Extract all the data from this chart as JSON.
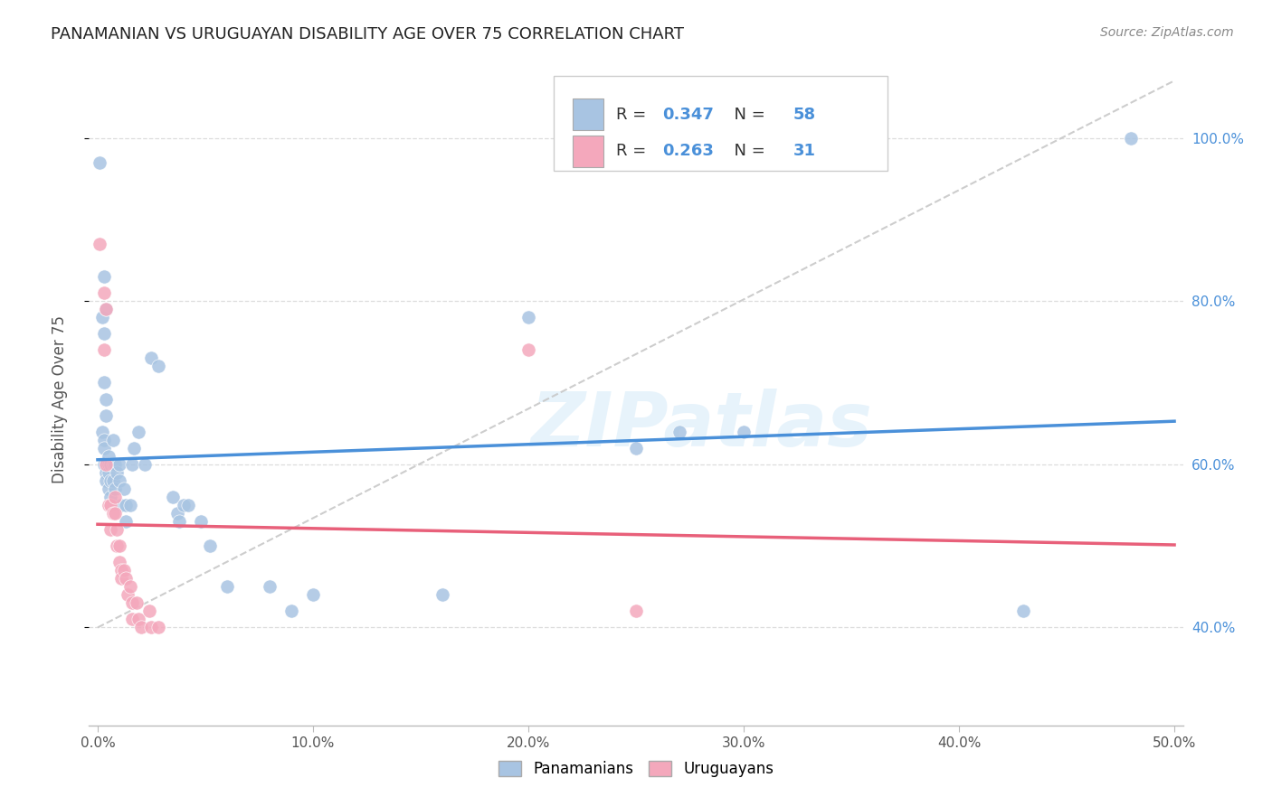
{
  "title": "PANAMANIAN VS URUGUAYAN DISABILITY AGE OVER 75 CORRELATION CHART",
  "source": "Source: ZipAtlas.com",
  "ylabel": "Disability Age Over 75",
  "blue_color": "#a8c4e2",
  "pink_color": "#f4a8bc",
  "blue_line_color": "#4a90d9",
  "pink_line_color": "#e8607a",
  "dashed_line_color": "#c8c8c8",
  "legend_R_blue": "0.347",
  "legend_N_blue": "58",
  "legend_R_pink": "0.263",
  "legend_N_pink": "31",
  "watermark": "ZIPatlas",
  "blue_points": [
    [
      0.001,
      0.97
    ],
    [
      0.003,
      0.83
    ],
    [
      0.002,
      0.78
    ],
    [
      0.003,
      0.76
    ],
    [
      0.004,
      0.79
    ],
    [
      0.003,
      0.7
    ],
    [
      0.004,
      0.68
    ],
    [
      0.004,
      0.66
    ],
    [
      0.002,
      0.64
    ],
    [
      0.003,
      0.63
    ],
    [
      0.003,
      0.62
    ],
    [
      0.003,
      0.6
    ],
    [
      0.004,
      0.59
    ],
    [
      0.004,
      0.58
    ],
    [
      0.005,
      0.61
    ],
    [
      0.005,
      0.6
    ],
    [
      0.005,
      0.59
    ],
    [
      0.005,
      0.57
    ],
    [
      0.006,
      0.6
    ],
    [
      0.006,
      0.58
    ],
    [
      0.006,
      0.56
    ],
    [
      0.007,
      0.63
    ],
    [
      0.007,
      0.6
    ],
    [
      0.007,
      0.58
    ],
    [
      0.008,
      0.6
    ],
    [
      0.008,
      0.57
    ],
    [
      0.009,
      0.59
    ],
    [
      0.01,
      0.6
    ],
    [
      0.01,
      0.58
    ],
    [
      0.011,
      0.55
    ],
    [
      0.012,
      0.57
    ],
    [
      0.013,
      0.55
    ],
    [
      0.013,
      0.53
    ],
    [
      0.015,
      0.55
    ],
    [
      0.016,
      0.6
    ],
    [
      0.017,
      0.62
    ],
    [
      0.019,
      0.64
    ],
    [
      0.022,
      0.6
    ],
    [
      0.025,
      0.73
    ],
    [
      0.028,
      0.72
    ],
    [
      0.035,
      0.56
    ],
    [
      0.037,
      0.54
    ],
    [
      0.038,
      0.53
    ],
    [
      0.04,
      0.55
    ],
    [
      0.042,
      0.55
    ],
    [
      0.048,
      0.53
    ],
    [
      0.052,
      0.5
    ],
    [
      0.06,
      0.45
    ],
    [
      0.08,
      0.45
    ],
    [
      0.09,
      0.42
    ],
    [
      0.1,
      0.44
    ],
    [
      0.16,
      0.44
    ],
    [
      0.2,
      0.78
    ],
    [
      0.25,
      0.62
    ],
    [
      0.27,
      0.64
    ],
    [
      0.3,
      0.64
    ],
    [
      0.43,
      0.42
    ],
    [
      0.48,
      1.0
    ]
  ],
  "pink_points": [
    [
      0.001,
      0.87
    ],
    [
      0.003,
      0.81
    ],
    [
      0.004,
      0.79
    ],
    [
      0.003,
      0.74
    ],
    [
      0.004,
      0.6
    ],
    [
      0.005,
      0.55
    ],
    [
      0.006,
      0.55
    ],
    [
      0.006,
      0.52
    ],
    [
      0.007,
      0.54
    ],
    [
      0.008,
      0.56
    ],
    [
      0.008,
      0.54
    ],
    [
      0.009,
      0.52
    ],
    [
      0.009,
      0.5
    ],
    [
      0.01,
      0.5
    ],
    [
      0.01,
      0.48
    ],
    [
      0.011,
      0.47
    ],
    [
      0.011,
      0.46
    ],
    [
      0.012,
      0.47
    ],
    [
      0.013,
      0.46
    ],
    [
      0.014,
      0.44
    ],
    [
      0.015,
      0.45
    ],
    [
      0.016,
      0.43
    ],
    [
      0.016,
      0.41
    ],
    [
      0.018,
      0.43
    ],
    [
      0.019,
      0.41
    ],
    [
      0.02,
      0.4
    ],
    [
      0.024,
      0.42
    ],
    [
      0.025,
      0.4
    ],
    [
      0.028,
      0.4
    ],
    [
      0.2,
      0.74
    ],
    [
      0.25,
      0.42
    ]
  ]
}
